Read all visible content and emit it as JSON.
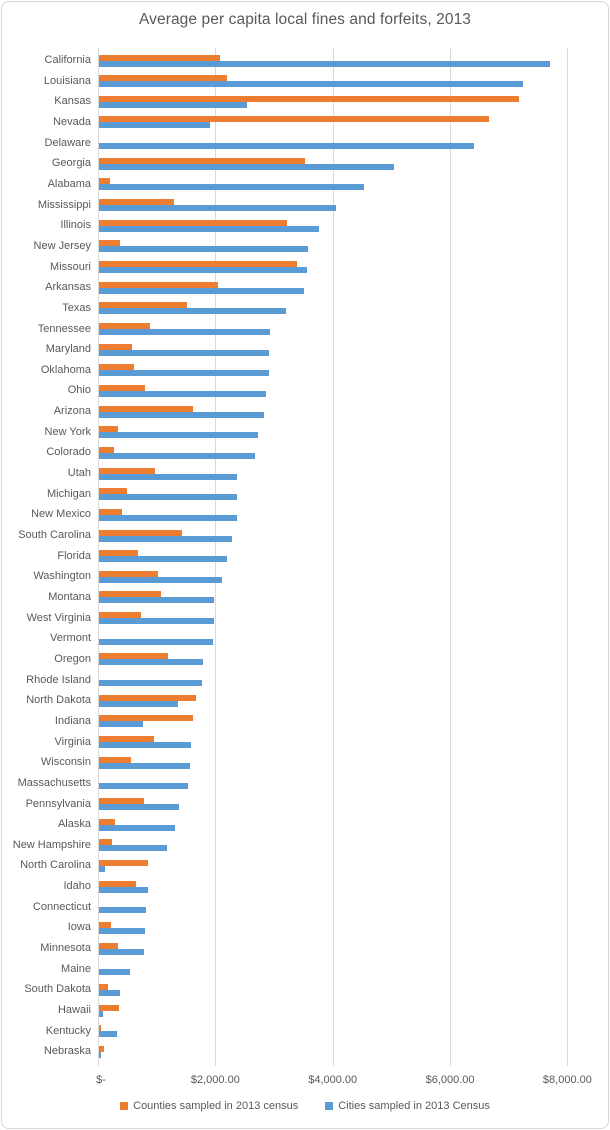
{
  "chart_data": {
    "type": "bar",
    "orientation": "horizontal",
    "title": "Average per capita local fines and forfeits, 2013",
    "xlabel": "",
    "ylabel": "",
    "xlim": [
      0,
      8000
    ],
    "grid": true,
    "legend_position": "bottom",
    "xticks": {
      "values": [
        0,
        2000,
        4000,
        6000,
        8000
      ],
      "labels": [
        "$-",
        "$2,000.00",
        "$4,000.00",
        "$6,000.00",
        "$8,000.00"
      ]
    },
    "categories": [
      "California",
      "Louisiana",
      "Kansas",
      "Nevada",
      "Delaware",
      "Georgia",
      "Alabama",
      "Mississippi",
      "Illinois",
      "New Jersey",
      "Missouri",
      "Arkansas",
      "Texas",
      "Tennessee",
      "Maryland",
      "Oklahoma",
      "Ohio",
      "Arizona",
      "New York",
      "Colorado",
      "Utah",
      "Michigan",
      "New Mexico",
      "South Carolina",
      "Florida",
      "Washington",
      "Montana",
      "West Virginia",
      "Vermont",
      "Oregon",
      "Rhode Island",
      "North Dakota",
      "Indiana",
      "Virginia",
      "Wisconsin",
      "Massachusetts",
      "Pennsylvania",
      "Alaska",
      "New Hampshire",
      "North Carolina",
      "Idaho",
      "Connecticut",
      "Iowa",
      "Minnesota",
      "Maine",
      "South Dakota",
      "Hawaii",
      "Kentucky",
      "Nebraska"
    ],
    "series": [
      {
        "name": "Counties sampled in 2013 census",
        "color": "#ED7D31",
        "values": [
          2070,
          2190,
          7150,
          6650,
          0,
          3510,
          180,
          1270,
          3200,
          350,
          3370,
          2020,
          1500,
          870,
          560,
          600,
          780,
          1600,
          320,
          250,
          960,
          480,
          390,
          1420,
          670,
          1000,
          1050,
          720,
          0,
          1170,
          0,
          1660,
          1610,
          930,
          540,
          0,
          760,
          270,
          230,
          830,
          630,
          0,
          200,
          320,
          0,
          160,
          345,
          35,
          85
        ]
      },
      {
        "name": "Cities sampled in 2013 Census",
        "color": "#5B9BD5",
        "values": [
          7680,
          7230,
          2530,
          1890,
          6390,
          5020,
          4520,
          4040,
          3750,
          3560,
          3550,
          3490,
          3190,
          2910,
          2900,
          2900,
          2850,
          2820,
          2710,
          2660,
          2360,
          2360,
          2360,
          2270,
          2180,
          2090,
          1960,
          1960,
          1940,
          1770,
          1760,
          1350,
          750,
          1560,
          1550,
          1510,
          1360,
          1290,
          1160,
          110,
          840,
          800,
          790,
          760,
          520,
          350,
          70,
          310,
          40
        ]
      }
    ]
  },
  "colors": {
    "text": "#595959",
    "gridline": "#D9D9D9",
    "border": "#D7D7D7",
    "background": "#FFFFFF"
  }
}
